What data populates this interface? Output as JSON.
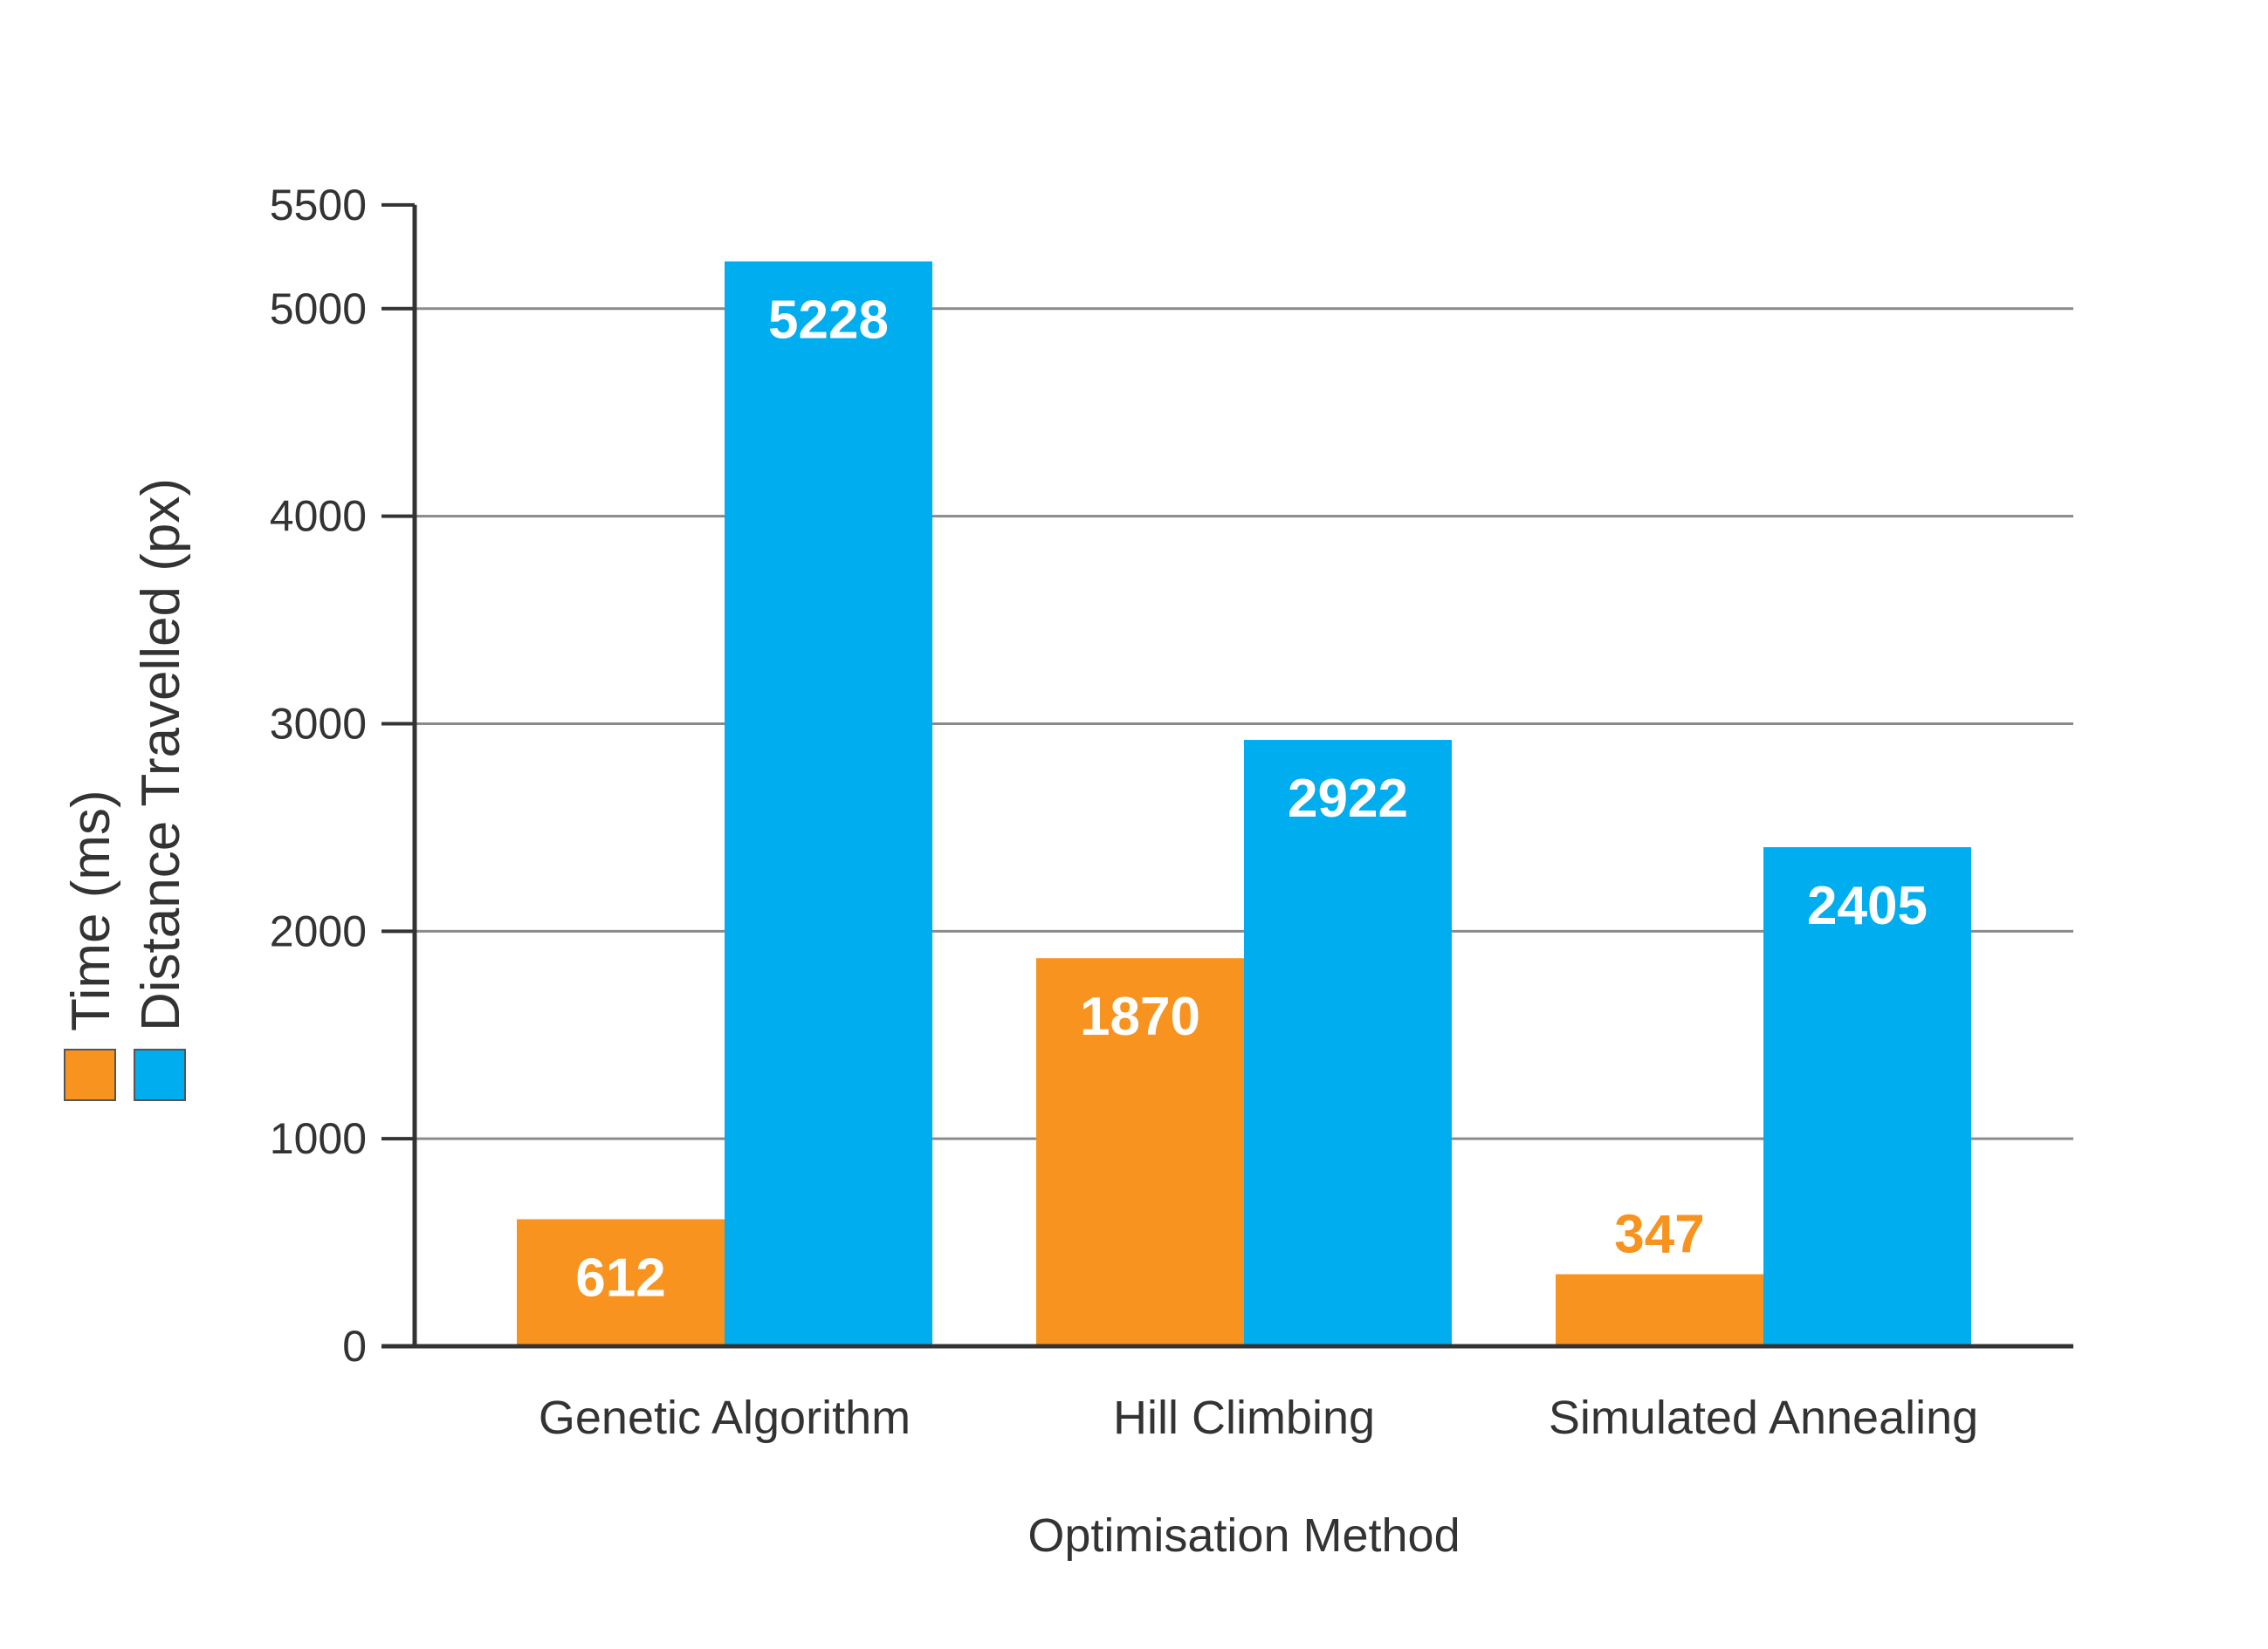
{
  "chart_data": {
    "type": "bar",
    "title": "",
    "xlabel": "Optimisation Method",
    "ylabel": "",
    "ylim": [
      0,
      5500
    ],
    "yticks": [
      0,
      1000,
      2000,
      3000,
      4000,
      5000,
      5500
    ],
    "gridlines": [
      1000,
      2000,
      3000,
      4000,
      5000
    ],
    "grid": true,
    "legend_position": "left-vertical",
    "categories": [
      "Genetic Algorithm",
      "Hill Climbing",
      "Simulated Annealing"
    ],
    "series": [
      {
        "name": "Time (ms)",
        "color": "#F7931E",
        "values": [
          612,
          1870,
          347
        ],
        "data_labels": [
          "612",
          "1870",
          "347"
        ]
      },
      {
        "name": "Distance Travelled (px)",
        "color": "#00AEEF",
        "values": [
          5228,
          2922,
          2405
        ],
        "data_labels": [
          "5228",
          "2922",
          "2405"
        ]
      }
    ]
  }
}
